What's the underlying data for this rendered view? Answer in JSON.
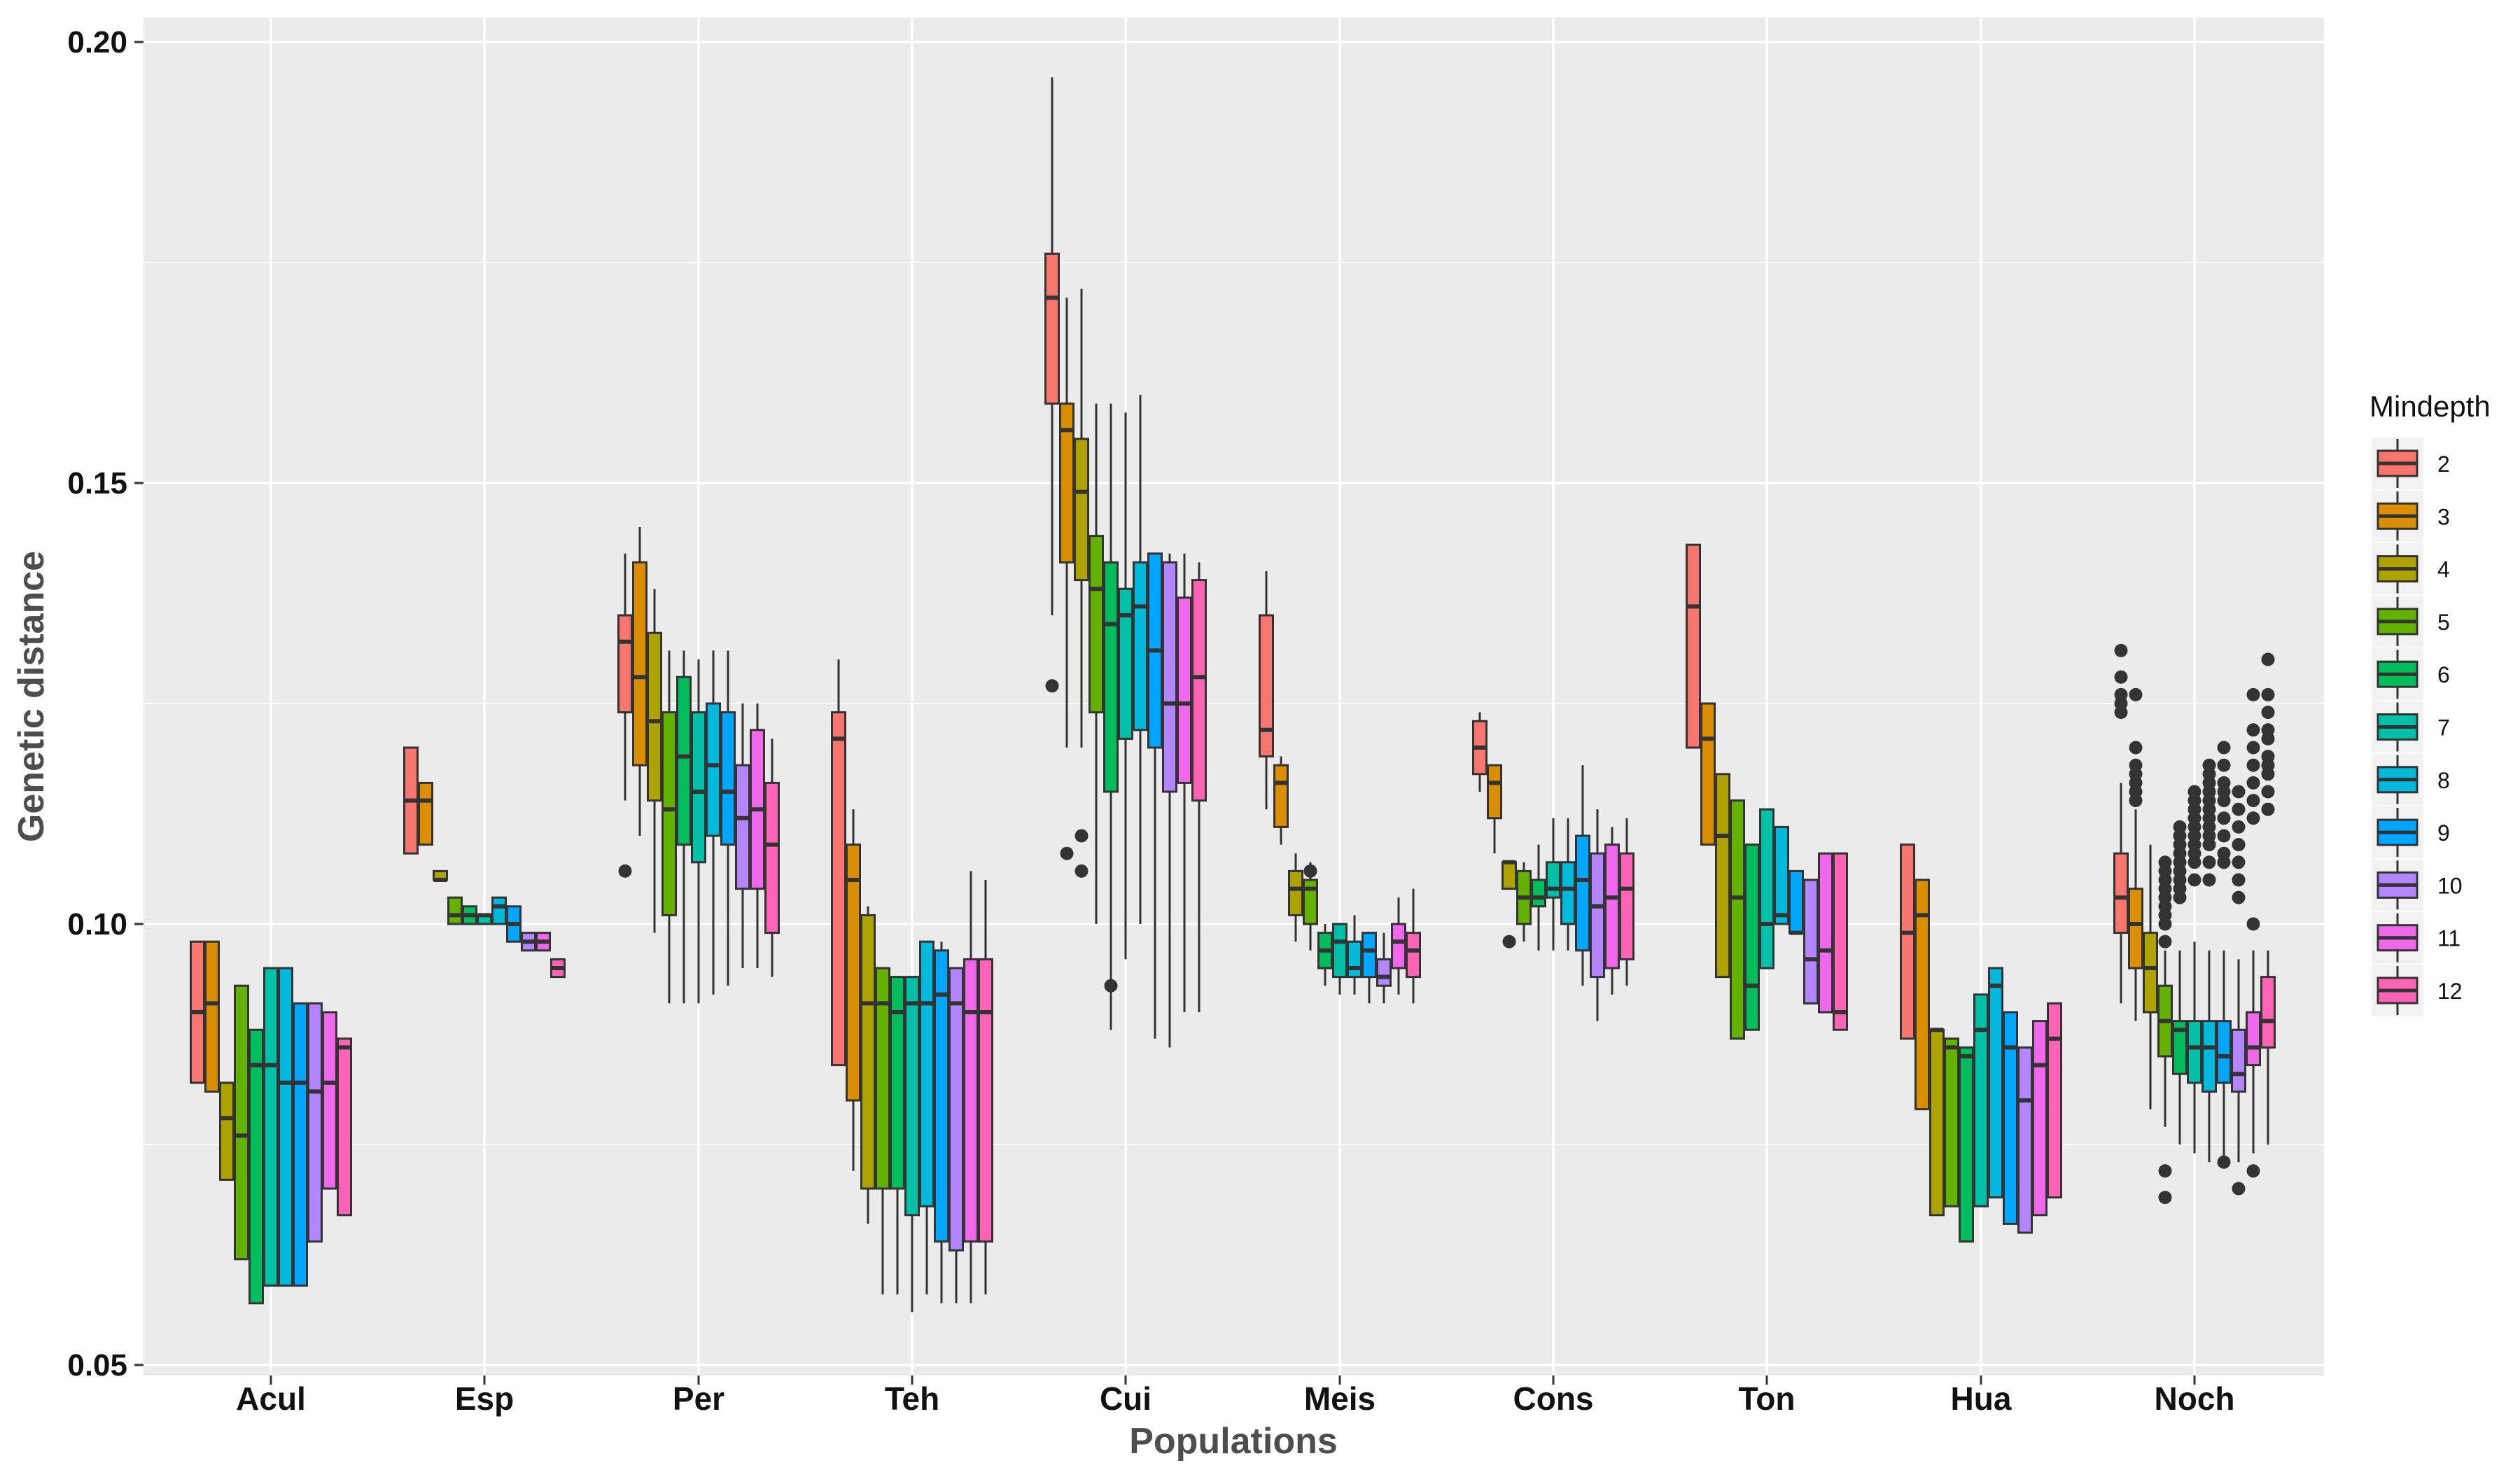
{
  "chart_data": {
    "type": "boxplot",
    "xlabel": "Populations",
    "ylabel": "Genetic distance",
    "ylim": [
      0.05,
      0.2
    ],
    "yticks": [
      "0.05",
      "0.10",
      "0.15",
      "0.20"
    ],
    "categories": [
      "Acul",
      "Esp",
      "Per",
      "Teh",
      "Cui",
      "Meis",
      "Cons",
      "Ton",
      "Hua",
      "Noch"
    ],
    "grid": true,
    "legend": {
      "title": "Mindepth",
      "position": "right",
      "entries": [
        "2",
        "3",
        "4",
        "5",
        "6",
        "7",
        "8",
        "9",
        "10",
        "11",
        "12"
      ]
    },
    "colors": [
      "#F8766D",
      "#DB8E00",
      "#AEA200",
      "#64B200",
      "#00BD5C",
      "#00C1A7",
      "#00BADE",
      "#00A6FF",
      "#B385FF",
      "#EF67EB",
      "#FF63B6"
    ],
    "series": [
      {
        "population": "Acul",
        "boxes": [
          [
            0.098,
            0.082,
            0.09,
            0.098,
            0.098
          ],
          [
            0.098,
            0.081,
            0.091,
            0.098,
            0.098
          ],
          [
            0.082,
            0.071,
            0.078,
            0.082,
            0.082
          ],
          [
            0.093,
            0.062,
            0.076,
            0.093,
            0.093
          ],
          [
            0.088,
            0.057,
            0.084,
            0.088,
            0.088
          ],
          [
            0.095,
            0.059,
            0.084,
            0.095,
            0.095
          ],
          [
            0.095,
            0.059,
            0.082,
            0.095,
            0.095
          ],
          [
            0.091,
            0.059,
            0.082,
            0.091,
            0.091
          ],
          [
            0.091,
            0.064,
            0.081,
            0.091,
            0.091
          ],
          [
            0.09,
            0.07,
            0.082,
            0.09,
            0.09
          ],
          [
            0.087,
            0.067,
            0.086,
            0.087,
            0.087
          ]
        ]
      },
      {
        "population": "Esp",
        "boxes": [
          [
            0.12,
            0.108,
            0.114,
            0.12,
            0.12
          ],
          [
            0.116,
            0.109,
            0.114,
            0.116,
            0.116
          ],
          [
            0.106,
            0.105,
            0.105,
            0.106,
            0.106
          ],
          [
            0.103,
            0.1,
            0.101,
            0.103,
            0.103
          ],
          [
            0.102,
            0.1,
            0.101,
            0.102,
            0.102
          ],
          [
            0.101,
            0.1,
            0.101,
            0.101,
            0.101
          ],
          [
            0.103,
            0.1,
            0.102,
            0.103,
            0.103
          ],
          [
            0.102,
            0.098,
            0.1,
            0.102,
            0.102
          ],
          [
            0.099,
            0.097,
            0.098,
            0.099,
            0.099
          ],
          [
            0.099,
            0.097,
            0.098,
            0.099,
            0.099
          ],
          [
            0.096,
            0.094,
            0.095,
            0.096,
            0.096
          ]
        ]
      },
      {
        "population": "Per",
        "boxes": [
          [
            0.142,
            0.124,
            0.132,
            0.135,
            0.114
          ],
          [
            0.145,
            0.118,
            0.128,
            0.141,
            0.11
          ],
          [
            0.138,
            0.114,
            0.123,
            0.133,
            0.099
          ],
          [
            0.131,
            0.101,
            0.113,
            0.124,
            0.091
          ],
          [
            0.131,
            0.109,
            0.119,
            0.128,
            0.091
          ],
          [
            0.13,
            0.107,
            0.115,
            0.124,
            0.091
          ],
          [
            0.131,
            0.11,
            0.118,
            0.125,
            0.092
          ],
          [
            0.131,
            0.109,
            0.115,
            0.124,
            0.093
          ],
          [
            0.125,
            0.104,
            0.112,
            0.118,
            0.095
          ],
          [
            0.125,
            0.104,
            0.113,
            0.122,
            0.095
          ],
          [
            0.121,
            0.099,
            0.109,
            0.116,
            0.094
          ]
        ]
      },
      {
        "population": "Teh",
        "boxes": [
          [
            0.13,
            0.084,
            0.121,
            0.124,
            0.084
          ],
          [
            0.113,
            0.08,
            0.105,
            0.109,
            0.072
          ],
          [
            0.102,
            0.07,
            0.091,
            0.101,
            0.066
          ],
          [
            0.095,
            0.07,
            0.091,
            0.095,
            0.058
          ],
          [
            0.094,
            0.07,
            0.09,
            0.094,
            0.058
          ],
          [
            0.093,
            0.067,
            0.091,
            0.094,
            0.056
          ],
          [
            0.098,
            0.068,
            0.091,
            0.098,
            0.058
          ],
          [
            0.098,
            0.064,
            0.092,
            0.097,
            0.057
          ],
          [
            0.095,
            0.063,
            0.091,
            0.095,
            0.057
          ],
          [
            0.106,
            0.064,
            0.09,
            0.096,
            0.057
          ],
          [
            0.105,
            0.064,
            0.09,
            0.096,
            0.058
          ]
        ]
      },
      {
        "population": "Cui",
        "boxes": [
          [
            0.196,
            0.159,
            0.171,
            0.176,
            0.135
          ],
          [
            0.171,
            0.141,
            0.156,
            0.159,
            0.12
          ],
          [
            0.172,
            0.139,
            0.149,
            0.155,
            0.12
          ],
          [
            0.159,
            0.124,
            0.138,
            0.144,
            0.1
          ],
          [
            0.159,
            0.115,
            0.134,
            0.141,
            0.088
          ],
          [
            0.158,
            0.121,
            0.135,
            0.138,
            0.096
          ],
          [
            0.16,
            0.122,
            0.136,
            0.141,
            0.1
          ],
          [
            0.142,
            0.12,
            0.131,
            0.142,
            0.087
          ],
          [
            0.142,
            0.115,
            0.125,
            0.141,
            0.086
          ],
          [
            0.142,
            0.116,
            0.125,
            0.137,
            0.09
          ],
          [
            0.141,
            0.114,
            0.128,
            0.139,
            0.09
          ]
        ]
      },
      {
        "population": "Meis",
        "boxes": [
          [
            0.14,
            0.119,
            0.122,
            0.135,
            0.113
          ],
          [
            0.119,
            0.111,
            0.116,
            0.118,
            0.109
          ],
          [
            0.108,
            0.101,
            0.104,
            0.106,
            0.098
          ],
          [
            0.107,
            0.1,
            0.104,
            0.105,
            0.097
          ],
          [
            0.1,
            0.095,
            0.097,
            0.099,
            0.093
          ],
          [
            0.1,
            0.094,
            0.098,
            0.1,
            0.092
          ],
          [
            0.101,
            0.094,
            0.095,
            0.098,
            0.092
          ],
          [
            0.099,
            0.094,
            0.097,
            0.099,
            0.091
          ],
          [
            0.099,
            0.093,
            0.094,
            0.096,
            0.091
          ],
          [
            0.103,
            0.095,
            0.098,
            0.1,
            0.092
          ],
          [
            0.104,
            0.094,
            0.097,
            0.099,
            0.091
          ]
        ]
      },
      {
        "population": "Cons",
        "boxes": [
          [
            0.124,
            0.117,
            0.12,
            0.123,
            0.115
          ],
          [
            0.118,
            0.112,
            0.116,
            0.118,
            0.108
          ],
          [
            0.107,
            0.104,
            0.107,
            0.107,
            0.104
          ],
          [
            0.107,
            0.1,
            0.103,
            0.106,
            0.098
          ],
          [
            0.109,
            0.102,
            0.103,
            0.105,
            0.097
          ],
          [
            0.112,
            0.103,
            0.104,
            0.107,
            0.097
          ],
          [
            0.112,
            0.1,
            0.104,
            0.107,
            0.097
          ],
          [
            0.118,
            0.097,
            0.105,
            0.11,
            0.093
          ],
          [
            0.113,
            0.094,
            0.102,
            0.108,
            0.089
          ],
          [
            0.111,
            0.095,
            0.103,
            0.109,
            0.092
          ],
          [
            0.112,
            0.096,
            0.104,
            0.108,
            0.093
          ]
        ]
      },
      {
        "population": "Ton",
        "boxes": [
          [
            0.143,
            0.12,
            0.136,
            0.143,
            0.12
          ],
          [
            0.125,
            0.109,
            0.121,
            0.125,
            0.109
          ],
          [
            0.117,
            0.094,
            0.11,
            0.117,
            0.094
          ],
          [
            0.114,
            0.087,
            0.103,
            0.114,
            0.087
          ],
          [
            0.109,
            0.088,
            0.093,
            0.109,
            0.088
          ],
          [
            0.113,
            0.095,
            0.1,
            0.113,
            0.095
          ],
          [
            0.111,
            0.1,
            0.101,
            0.111,
            0.1
          ],
          [
            0.106,
            0.099,
            0.099,
            0.106,
            0.099
          ],
          [
            0.105,
            0.091,
            0.096,
            0.105,
            0.091
          ],
          [
            0.108,
            0.09,
            0.097,
            0.108,
            0.09
          ],
          [
            0.108,
            0.088,
            0.09,
            0.108,
            0.088
          ]
        ]
      },
      {
        "population": "Hua",
        "boxes": [
          [
            0.109,
            0.087,
            0.099,
            0.109,
            0.087
          ],
          [
            0.105,
            0.079,
            0.101,
            0.105,
            0.079
          ],
          [
            0.088,
            0.067,
            0.088,
            0.088,
            0.067
          ],
          [
            0.087,
            0.068,
            0.086,
            0.087,
            0.068
          ],
          [
            0.086,
            0.064,
            0.085,
            0.086,
            0.064
          ],
          [
            0.092,
            0.068,
            0.088,
            0.092,
            0.068
          ],
          [
            0.095,
            0.069,
            0.093,
            0.095,
            0.069
          ],
          [
            0.09,
            0.066,
            0.086,
            0.09,
            0.066
          ],
          [
            0.086,
            0.065,
            0.08,
            0.086,
            0.065
          ],
          [
            0.089,
            0.067,
            0.084,
            0.089,
            0.067
          ],
          [
            0.091,
            0.069,
            0.087,
            0.091,
            0.069
          ]
        ]
      },
      {
        "population": "Noch",
        "boxes": [
          [
            0.116,
            0.099,
            0.103,
            0.108,
            0.091
          ],
          [
            0.113,
            0.095,
            0.1,
            0.104,
            0.089
          ],
          [
            0.109,
            0.09,
            0.095,
            0.099,
            0.079
          ],
          [
            0.097,
            0.085,
            0.089,
            0.093,
            0.077
          ],
          [
            0.097,
            0.083,
            0.088,
            0.089,
            0.075
          ],
          [
            0.098,
            0.082,
            0.086,
            0.089,
            0.074
          ],
          [
            0.097,
            0.081,
            0.086,
            0.089,
            0.073
          ],
          [
            0.097,
            0.082,
            0.085,
            0.089,
            0.073
          ],
          [
            0.096,
            0.081,
            0.083,
            0.088,
            0.073
          ],
          [
            0.097,
            0.084,
            0.086,
            0.09,
            0.074
          ],
          [
            0.097,
            0.086,
            0.089,
            0.094,
            0.075
          ]
        ]
      }
    ],
    "outliers": [
      {
        "population": "Per",
        "mindepth": "2",
        "values": [
          0.106
        ]
      },
      {
        "population": "Cui",
        "mindepth": "2",
        "values": [
          0.127
        ]
      },
      {
        "population": "Cui",
        "mindepth": "3",
        "values": [
          0.108
        ]
      },
      {
        "population": "Cui",
        "mindepth": "4",
        "values": [
          0.106,
          0.11
        ]
      },
      {
        "population": "Cui",
        "mindepth": "6",
        "values": [
          0.093
        ]
      },
      {
        "population": "Meis",
        "mindepth": "5",
        "values": [
          0.106
        ]
      },
      {
        "population": "Cons",
        "mindepth": "4",
        "values": [
          0.098
        ]
      },
      {
        "population": "Noch",
        "mindepth": "2",
        "values": [
          0.124,
          0.125,
          0.126,
          0.128,
          0.131
        ]
      },
      {
        "population": "Noch",
        "mindepth": "3",
        "values": [
          0.114,
          0.115,
          0.116,
          0.117,
          0.118,
          0.12,
          0.126
        ]
      },
      {
        "population": "Noch",
        "mindepth": "5",
        "values": [
          0.069,
          0.072,
          0.098,
          0.1,
          0.101,
          0.102,
          0.103,
          0.104,
          0.105,
          0.106,
          0.107
        ]
      },
      {
        "population": "Noch",
        "mindepth": "6",
        "values": [
          0.103,
          0.104,
          0.105,
          0.106,
          0.107,
          0.108,
          0.109,
          0.11,
          0.111
        ]
      },
      {
        "population": "Noch",
        "mindepth": "7",
        "values": [
          0.105,
          0.107,
          0.108,
          0.109,
          0.11,
          0.111,
          0.112,
          0.113,
          0.114,
          0.115
        ]
      },
      {
        "population": "Noch",
        "mindepth": "8",
        "values": [
          0.105,
          0.107,
          0.109,
          0.11,
          0.111,
          0.112,
          0.113,
          0.114,
          0.115,
          0.116,
          0.117,
          0.118
        ]
      },
      {
        "population": "Noch",
        "mindepth": "9",
        "values": [
          0.073,
          0.107,
          0.108,
          0.11,
          0.112,
          0.114,
          0.115,
          0.116,
          0.118,
          0.12
        ]
      },
      {
        "population": "Noch",
        "mindepth": "10",
        "values": [
          0.07,
          0.103,
          0.105,
          0.107,
          0.109,
          0.111,
          0.113,
          0.115
        ]
      },
      {
        "population": "Noch",
        "mindepth": "11",
        "values": [
          0.072,
          0.1,
          0.112,
          0.114,
          0.116,
          0.118,
          0.12,
          0.122,
          0.126
        ]
      },
      {
        "population": "Noch",
        "mindepth": "12",
        "values": [
          0.113,
          0.115,
          0.117,
          0.118,
          0.119,
          0.121,
          0.122,
          0.124,
          0.126,
          0.13
        ]
      }
    ]
  }
}
